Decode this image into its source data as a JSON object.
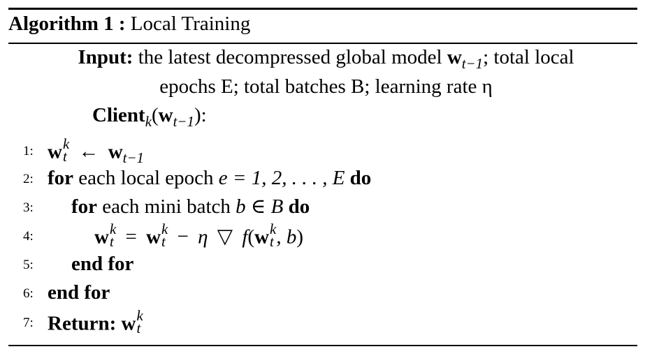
{
  "header": {
    "algo_label": "Algorithm 1 :",
    "algo_title": "Local Training"
  },
  "input": {
    "label": "Input:",
    "text_a": "the latest decompressed global model",
    "model_symbol": "w",
    "model_subscript": "t−1",
    "text_b": "; total local",
    "line2": "epochs E; total batches B; learning rate η"
  },
  "client": {
    "label": "Client",
    "index": "k",
    "arg_symbol": "w",
    "arg_subscript": "t−1",
    "suffix": "):"
  },
  "steps": [
    {
      "n": "1:"
    },
    {
      "n": "2:",
      "kw": "for",
      "text": "each local epoch",
      "expr": "e = 1, 2, . . . , E",
      "end_kw": "do"
    },
    {
      "n": "3:",
      "kw": "for",
      "text": "each mini batch",
      "expr": "b ∈ B",
      "end_kw": "do"
    },
    {
      "n": "4:"
    },
    {
      "n": "5:",
      "kw": "end for"
    },
    {
      "n": "6:",
      "kw": "end for"
    },
    {
      "n": "7:",
      "kw": "Return:"
    }
  ],
  "symbols": {
    "w": "w",
    "t": "t",
    "k": "k",
    "t_minus_1": "t−1",
    "arrow": "←",
    "eq": "=",
    "minus": "−",
    "eta": "η",
    "nabla": "▽",
    "f": "f",
    "b": "b"
  }
}
